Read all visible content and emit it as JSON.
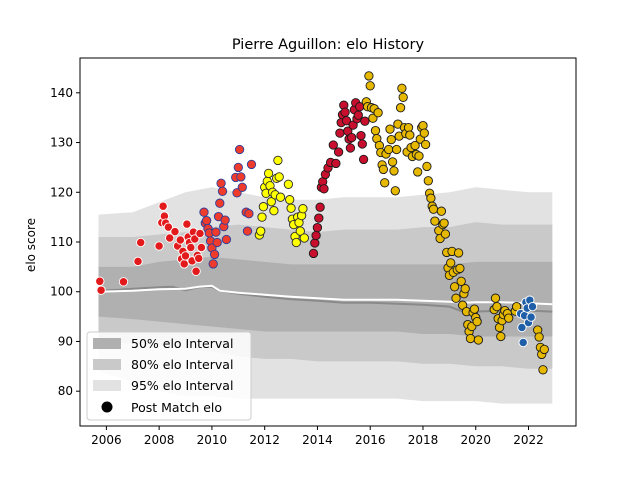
{
  "chart_data": {
    "type": "scatter",
    "title": "Pierre Aguillon: elo History",
    "xlabel": "",
    "ylabel": "elo score",
    "xlim": [
      2005.0,
      2023.8
    ],
    "ylim": [
      73,
      147
    ],
    "x_ticks": [
      2006,
      2008,
      2010,
      2012,
      2014,
      2016,
      2018,
      2020,
      2022
    ],
    "y_ticks": [
      80,
      90,
      100,
      110,
      120,
      130,
      140
    ],
    "legend_position": "lower-left",
    "legend": {
      "band50": "50% elo Interval",
      "band80": "80% elo Interval",
      "band95": "95% elo Interval",
      "points": "Post Match elo"
    },
    "band_colors": {
      "band95": "#e2e2e2",
      "band80": "#c9c9c9",
      "band50": "#b0b0b0",
      "median": "#8a8a8a",
      "mean": "#ffffff"
    },
    "band_x": [
      2005.7,
      2007,
      2008,
      2009,
      2010,
      2011,
      2012,
      2013,
      2014,
      2015,
      2016,
      2017,
      2018,
      2019,
      2020,
      2021,
      2022,
      2022.9
    ],
    "band95_upper": [
      115.5,
      116,
      118,
      120,
      121,
      120,
      119,
      118.5,
      118.5,
      119,
      119,
      119,
      119.5,
      120,
      121,
      120.5,
      120,
      120
    ],
    "band95_lower": [
      84,
      82,
      80,
      79,
      79,
      78.5,
      78.5,
      78.5,
      78.5,
      78.5,
      78.5,
      78.5,
      78,
      78,
      78,
      77.5,
      77.5,
      77.5
    ],
    "band80_upper": [
      111,
      111,
      111.5,
      112,
      113,
      113.5,
      113,
      112.5,
      112,
      112.5,
      112.5,
      112.5,
      113,
      113,
      114,
      113.5,
      113.5,
      113.5
    ],
    "band80_lower": [
      90,
      89.5,
      89,
      88.5,
      88,
      87,
      86.5,
      86.5,
      86,
      86,
      86,
      86,
      85.5,
      85.5,
      85,
      85,
      84.5,
      84.5
    ],
    "band50_upper": [
      105,
      105,
      106,
      106.5,
      107,
      106.5,
      106,
      105.5,
      105.5,
      105.5,
      105.5,
      105.5,
      105.5,
      105.5,
      106,
      106,
      106,
      106
    ],
    "band50_lower": [
      95,
      94.5,
      94,
      93.5,
      93,
      92.5,
      92,
      92,
      92,
      92,
      92,
      92,
      91.5,
      91.5,
      91,
      91,
      91,
      91
    ],
    "median_x": [
      2005.7,
      2006.5,
      2007,
      2008,
      2008.5,
      2009,
      2009.5,
      2010,
      2010.3,
      2011,
      2012,
      2013,
      2014,
      2015,
      2016,
      2017,
      2018,
      2019,
      2019.5,
      2020,
      2021,
      2022,
      2022.9
    ],
    "median_y": [
      100.2,
      100.4,
      100.6,
      100.9,
      101.0,
      100.3,
      100.9,
      101.0,
      100.2,
      99.6,
      99.0,
      98.5,
      98.2,
      97.8,
      97.8,
      97.6,
      97.4,
      97.0,
      96.0,
      96.0,
      96.2,
      96.2,
      96.0
    ],
    "mean_x": [
      2005.7,
      2007,
      2008,
      2009,
      2009.5,
      2010,
      2010.3,
      2011,
      2012,
      2013,
      2014,
      2015,
      2016,
      2017,
      2018,
      2019,
      2019.5,
      2020,
      2021,
      2022,
      2022.9
    ],
    "mean_y": [
      100.0,
      100.2,
      100.5,
      100.6,
      101.0,
      101.2,
      100.2,
      99.8,
      99.4,
      99.0,
      98.7,
      98.4,
      98.4,
      98.4,
      98.2,
      98.0,
      97.8,
      97.9,
      97.9,
      97.7,
      97.5
    ],
    "series": [
      {
        "color": "#e31a1c",
        "edge": "#ffffff",
        "points": [
          [
            2005.75,
            102.1
          ],
          [
            2005.8,
            100.3
          ],
          [
            2006.65,
            102.0
          ],
          [
            2007.2,
            106.1
          ],
          [
            2007.3,
            109.9
          ],
          [
            2008.0,
            109.2
          ],
          [
            2008.1,
            113.9
          ],
          [
            2008.15,
            117.2
          ],
          [
            2008.2,
            115.2
          ],
          [
            2008.25,
            113.8
          ],
          [
            2008.35,
            113.0
          ],
          [
            2008.4,
            110.8
          ],
          [
            2008.6,
            112.1
          ],
          [
            2008.7,
            109.2
          ],
          [
            2008.8,
            110.4
          ],
          [
            2008.85,
            106.6
          ],
          [
            2008.9,
            108.1
          ],
          [
            2008.95,
            105.6
          ],
          [
            2009.0,
            107.2
          ],
          [
            2009.05,
            113.6
          ],
          [
            2009.1,
            111.0
          ],
          [
            2009.15,
            109.9
          ],
          [
            2009.2,
            108.9
          ],
          [
            2009.25,
            106.2
          ],
          [
            2009.3,
            112.0
          ],
          [
            2009.35,
            110.6
          ],
          [
            2009.4,
            104.1
          ],
          [
            2009.45,
            107.3
          ],
          [
            2009.5,
            106.7
          ],
          [
            2009.55,
            111.7
          ],
          [
            2009.6,
            108.9
          ]
        ]
      },
      {
        "color": "#ef3b2c",
        "edge": "#2c3e9a",
        "points": [
          [
            2009.7,
            116.0
          ],
          [
            2009.75,
            113.8
          ],
          [
            2009.8,
            114.3
          ],
          [
            2009.85,
            112.7
          ],
          [
            2009.9,
            111.8
          ],
          [
            2009.95,
            110.2
          ],
          [
            2010.0,
            108.8
          ],
          [
            2010.05,
            105.6
          ],
          [
            2010.1,
            107.5
          ],
          [
            2010.15,
            112.0
          ],
          [
            2010.2,
            109.9
          ],
          [
            2010.25,
            115.1
          ],
          [
            2010.3,
            117.8
          ],
          [
            2010.35,
            121.8
          ],
          [
            2010.4,
            120.2
          ],
          [
            2010.45,
            113.1
          ],
          [
            2010.5,
            114.4
          ],
          [
            2010.55,
            110.5
          ],
          [
            2010.9,
            123.0
          ],
          [
            2010.95,
            119.9
          ],
          [
            2011.0,
            125.0
          ],
          [
            2011.05,
            128.6
          ],
          [
            2011.1,
            123.1
          ],
          [
            2011.15,
            121.0
          ],
          [
            2011.3,
            116.0
          ],
          [
            2011.35,
            112.2
          ],
          [
            2011.4,
            115.7
          ],
          [
            2011.5,
            125.6
          ]
        ]
      },
      {
        "color": "#ffff00",
        "edge": "#2b2b2b",
        "points": [
          [
            2011.8,
            111.4
          ],
          [
            2011.85,
            112.2
          ],
          [
            2011.9,
            115.0
          ],
          [
            2011.95,
            117.1
          ],
          [
            2012.0,
            121.0
          ],
          [
            2012.05,
            119.8
          ],
          [
            2012.1,
            122.2
          ],
          [
            2012.15,
            123.8
          ],
          [
            2012.2,
            121.3
          ],
          [
            2012.25,
            118.1
          ],
          [
            2012.3,
            120.0
          ],
          [
            2012.35,
            116.3
          ],
          [
            2012.4,
            119.5
          ],
          [
            2012.45,
            122.8
          ],
          [
            2012.5,
            126.4
          ],
          [
            2012.55,
            123.1
          ],
          [
            2012.6,
            119.0
          ],
          [
            2012.9,
            121.6
          ],
          [
            2012.95,
            118.5
          ],
          [
            2013.0,
            116.8
          ],
          [
            2013.05,
            114.6
          ],
          [
            2013.1,
            113.5
          ],
          [
            2013.15,
            111.1
          ],
          [
            2013.2,
            109.9
          ],
          [
            2013.25,
            115.0
          ],
          [
            2013.3,
            113.9
          ],
          [
            2013.35,
            112.2
          ],
          [
            2013.4,
            115.3
          ],
          [
            2013.45,
            116.7
          ],
          [
            2013.5,
            110.8
          ]
        ]
      },
      {
        "color": "#c8102e",
        "edge": "#1a1a1a",
        "points": [
          [
            2013.85,
            107.7
          ],
          [
            2013.9,
            109.8
          ],
          [
            2013.95,
            111.3
          ],
          [
            2014.0,
            112.9
          ],
          [
            2014.05,
            114.8
          ],
          [
            2014.1,
            117.0
          ],
          [
            2014.15,
            121.0
          ],
          [
            2014.2,
            122.1
          ],
          [
            2014.25,
            120.7
          ],
          [
            2014.3,
            123.6
          ],
          [
            2014.4,
            124.9
          ],
          [
            2014.5,
            126.0
          ],
          [
            2014.6,
            129.5
          ],
          [
            2014.7,
            125.8
          ],
          [
            2014.8,
            128.1
          ],
          [
            2014.85,
            131.9
          ],
          [
            2014.9,
            134.0
          ],
          [
            2014.95,
            135.6
          ],
          [
            2015.0,
            137.5
          ],
          [
            2015.05,
            136.1
          ],
          [
            2015.1,
            134.4
          ],
          [
            2015.15,
            132.3
          ],
          [
            2015.2,
            130.7
          ],
          [
            2015.25,
            128.9
          ],
          [
            2015.3,
            131.0
          ],
          [
            2015.35,
            133.5
          ],
          [
            2015.4,
            136.6
          ],
          [
            2015.45,
            138.0
          ],
          [
            2015.5,
            134.8
          ],
          [
            2015.55,
            135.5
          ],
          [
            2015.6,
            137.2
          ],
          [
            2015.65,
            131.4
          ],
          [
            2015.7,
            129.7
          ],
          [
            2015.75,
            126.6
          ],
          [
            2015.8,
            134.3
          ]
        ]
      },
      {
        "color": "#e6b800",
        "edge": "#1a1a1a",
        "points": [
          [
            2015.85,
            138.2
          ],
          [
            2015.9,
            137.2
          ],
          [
            2015.95,
            143.4
          ],
          [
            2016.0,
            141.4
          ],
          [
            2016.05,
            137.0
          ],
          [
            2016.1,
            134.9
          ],
          [
            2016.15,
            136.8
          ],
          [
            2016.2,
            132.4
          ],
          [
            2016.25,
            130.8
          ],
          [
            2016.3,
            136.0
          ],
          [
            2016.35,
            129.4
          ],
          [
            2016.4,
            128.0
          ],
          [
            2016.45,
            125.5
          ],
          [
            2016.5,
            124.6
          ],
          [
            2016.55,
            121.9
          ],
          [
            2016.6,
            127.7
          ],
          [
            2016.7,
            128.6
          ],
          [
            2016.75,
            132.7
          ],
          [
            2016.8,
            130.6
          ],
          [
            2016.85,
            126.1
          ],
          [
            2016.9,
            124.3
          ],
          [
            2016.95,
            120.3
          ],
          [
            2017.0,
            128.6
          ],
          [
            2017.05,
            133.7
          ],
          [
            2017.1,
            131.3
          ],
          [
            2017.15,
            137.0
          ],
          [
            2017.2,
            140.9
          ],
          [
            2017.25,
            139.1
          ],
          [
            2017.3,
            133.0
          ],
          [
            2017.35,
            131.8
          ],
          [
            2017.4,
            128.1
          ],
          [
            2017.45,
            133.0
          ],
          [
            2017.5,
            131.5
          ],
          [
            2017.55,
            129.0
          ],
          [
            2017.6,
            127.2
          ],
          [
            2017.7,
            129.4
          ],
          [
            2017.75,
            127.6
          ],
          [
            2017.8,
            124.1
          ],
          [
            2017.85,
            127.3
          ],
          [
            2017.9,
            130.7
          ],
          [
            2017.95,
            133.0
          ],
          [
            2018.0,
            133.4
          ],
          [
            2018.05,
            131.9
          ],
          [
            2018.1,
            129.6
          ],
          [
            2018.15,
            125.2
          ],
          [
            2018.2,
            122.3
          ],
          [
            2018.25,
            119.8
          ],
          [
            2018.3,
            118.8
          ],
          [
            2018.35,
            117.2
          ],
          [
            2018.4,
            116.6
          ],
          [
            2018.45,
            114.2
          ],
          [
            2018.6,
            112.3
          ],
          [
            2018.65,
            110.7
          ],
          [
            2018.7,
            116.2
          ],
          [
            2018.75,
            113.5
          ],
          [
            2018.8,
            113.8
          ],
          [
            2018.85,
            111.6
          ],
          [
            2018.9,
            107.9
          ],
          [
            2018.95,
            104.8
          ],
          [
            2019.0,
            103.3
          ],
          [
            2019.05,
            105.8
          ],
          [
            2019.1,
            108.1
          ],
          [
            2019.15,
            103.9
          ],
          [
            2019.2,
            101.0
          ],
          [
            2019.25,
            98.7
          ],
          [
            2019.3,
            104.4
          ],
          [
            2019.35,
            107.8
          ],
          [
            2019.4,
            104.7
          ],
          [
            2019.45,
            102.1
          ],
          [
            2019.5,
            97.3
          ],
          [
            2019.55,
            99.6
          ],
          [
            2019.6,
            100.6
          ],
          [
            2019.65,
            96.0
          ],
          [
            2019.7,
            93.4
          ],
          [
            2019.75,
            92.0
          ],
          [
            2019.8,
            90.6
          ],
          [
            2019.85,
            93.0
          ],
          [
            2019.9,
            95.8
          ],
          [
            2019.95,
            96.5
          ],
          [
            2020.0,
            94.8
          ],
          [
            2020.05,
            94.0
          ],
          [
            2020.1,
            90.3
          ],
          [
            2020.7,
            96.4
          ],
          [
            2020.75,
            98.7
          ],
          [
            2020.8,
            97.0
          ],
          [
            2020.85,
            94.6
          ],
          [
            2020.9,
            92.8
          ],
          [
            2020.95,
            91.0
          ],
          [
            2021.0,
            94.2
          ],
          [
            2021.05,
            95.4
          ],
          [
            2021.1,
            96.2
          ],
          [
            2021.2,
            95.6
          ],
          [
            2021.25,
            94.7
          ],
          [
            2021.5,
            96.1
          ],
          [
            2021.55,
            97.0
          ],
          [
            2022.35,
            92.3
          ],
          [
            2022.4,
            90.9
          ],
          [
            2022.45,
            88.8
          ],
          [
            2022.5,
            87.4
          ],
          [
            2022.55,
            84.3
          ],
          [
            2022.6,
            88.4
          ]
        ]
      },
      {
        "color": "#1f5fa8",
        "edge": "#ffffff",
        "points": [
          [
            2021.7,
            95.6
          ],
          [
            2021.75,
            92.8
          ],
          [
            2021.8,
            89.8
          ],
          [
            2021.85,
            95.2
          ],
          [
            2021.9,
            97.9
          ],
          [
            2021.95,
            96.7
          ],
          [
            2022.0,
            93.8
          ],
          [
            2022.05,
            98.3
          ],
          [
            2022.1,
            94.9
          ],
          [
            2022.15,
            97.0
          ]
        ]
      }
    ]
  }
}
